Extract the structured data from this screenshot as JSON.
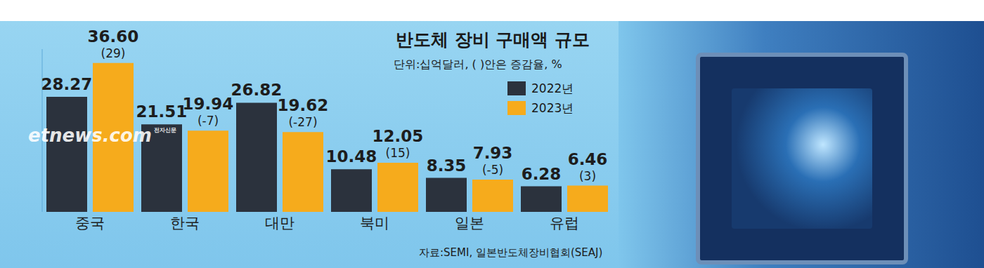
{
  "chart_data": {
    "type": "bar",
    "title": "반도체 장비 구매액 규모",
    "subtitle": "단위:십억달러, ( )안은 증감율, %",
    "source": "자료:SEMI, 일본반도체장비협회(SEAJ)",
    "watermark": "etnews.com",
    "watermark_sub": "전자신문",
    "categories": [
      "중국",
      "한국",
      "대만",
      "북미",
      "일본",
      "유럽"
    ],
    "series": [
      {
        "name": "2022년",
        "color": "#2b323d",
        "values": [
          28.27,
          21.51,
          26.82,
          10.48,
          8.35,
          6.28
        ]
      },
      {
        "name": "2023년",
        "color": "#f6ab1c",
        "values": [
          36.6,
          19.94,
          19.62,
          12.05,
          7.93,
          6.46
        ],
        "value_labels": [
          "36.60",
          "19.94",
          "19.62",
          "12.05",
          "7.93",
          "6.46"
        ],
        "changes": [
          29,
          -7,
          -27,
          15,
          -5,
          3
        ],
        "change_labels": [
          "(29)",
          "(-7)",
          "(-27)",
          "(15)",
          "(-5)",
          "(3)"
        ]
      }
    ],
    "ylim": [
      0,
      40
    ],
    "yticks": [],
    "tick_labels": "x",
    "grid": false,
    "legend": "top-right",
    "data_labels": true
  }
}
